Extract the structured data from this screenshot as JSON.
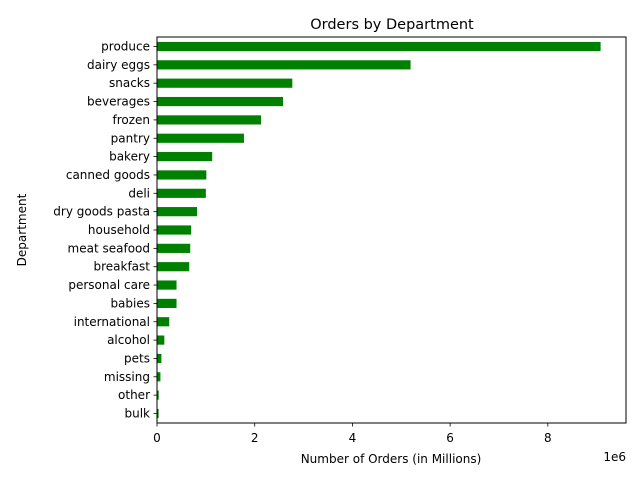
{
  "chart_data": {
    "type": "bar",
    "orientation": "horizontal",
    "title": "Orders by Department",
    "xlabel": "Number of Orders (in Millions)",
    "ylabel": "Department",
    "x_offset_label": "1e6",
    "xlim": [
      0,
      9600000
    ],
    "x_ticks": [
      0,
      2000000,
      4000000,
      6000000,
      8000000
    ],
    "x_tick_labels": [
      "0",
      "2",
      "4",
      "6",
      "8"
    ],
    "grid": false,
    "legend": "none",
    "bar_color": "#008000",
    "categories": [
      "produce",
      "dairy eggs",
      "snacks",
      "beverages",
      "frozen",
      "pantry",
      "bakery",
      "canned goods",
      "deli",
      "dry goods pasta",
      "household",
      "meat seafood",
      "breakfast",
      "personal care",
      "babies",
      "international",
      "alcohol",
      "pets",
      "missing",
      "other",
      "bulk"
    ],
    "values": [
      9080000,
      5190000,
      2770000,
      2580000,
      2130000,
      1780000,
      1130000,
      1010000,
      1000000,
      820000,
      700000,
      680000,
      660000,
      400000,
      400000,
      250000,
      150000,
      90000,
      70000,
      35000,
      33000
    ]
  }
}
